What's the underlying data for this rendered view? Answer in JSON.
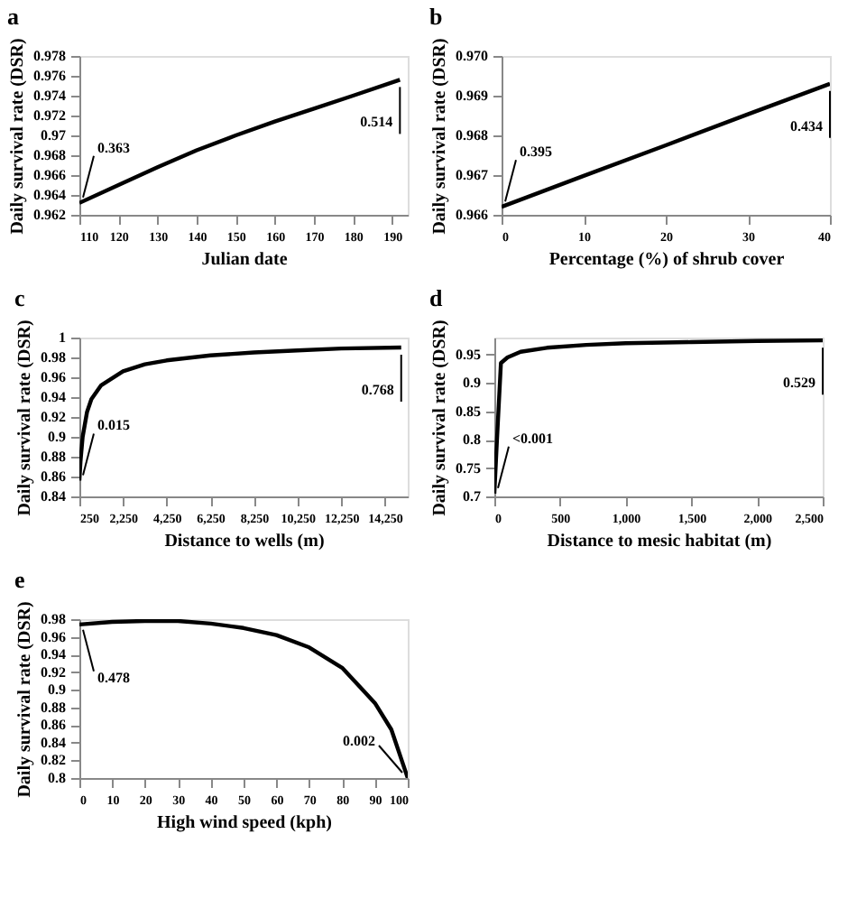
{
  "chart_data": [
    {
      "type": "line",
      "title": "a",
      "xlabel": "Julian date",
      "ylabel": "Daily survival rate (DSR)",
      "x": [
        110,
        120,
        130,
        140,
        150,
        160,
        170,
        180,
        192
      ],
      "series": [
        {
          "color": "#000000",
          "values": [
            0.9632,
            0.965,
            0.9668,
            0.9685,
            0.97,
            0.9714,
            0.9727,
            0.974,
            0.9756
          ]
        }
      ],
      "xlim": [
        110,
        194
      ],
      "xticks": [
        110,
        120,
        130,
        140,
        150,
        160,
        170,
        180,
        190
      ],
      "ylim": [
        0.962,
        0.978
      ],
      "yticks": [
        0.962,
        0.964,
        0.966,
        0.968,
        0.97,
        0.972,
        0.974,
        0.976,
        0.978
      ],
      "annotations": [
        {
          "text": "0.363",
          "x": 110,
          "y": 0.9632
        },
        {
          "text": "0.514",
          "x": 192,
          "y": 0.9756
        }
      ],
      "grid": false
    },
    {
      "type": "line",
      "title": "b",
      "xlabel": "Percentage (%) of shrub cover",
      "ylabel": "Daily survival rate (DSR)",
      "x": [
        0,
        10,
        20,
        30,
        40
      ],
      "series": [
        {
          "color": "#000000",
          "values": [
            0.9662,
            0.96698,
            0.96775,
            0.96853,
            0.9693
          ]
        }
      ],
      "xlim": [
        0,
        40
      ],
      "xticks": [
        0,
        10,
        20,
        30,
        40
      ],
      "ylim": [
        0.966,
        0.97
      ],
      "yticks": [
        0.966,
        0.967,
        0.968,
        0.969,
        {
          "value": 0.97,
          "label": "0.970"
        }
      ],
      "annotations": [
        {
          "text": "0.395",
          "x": 0,
          "y": 0.9662
        },
        {
          "text": "0.434",
          "x": 40,
          "y": 0.9693
        }
      ],
      "grid": false
    },
    {
      "type": "line",
      "title": "c",
      "xlabel": "Distance to wells (m)",
      "ylabel": "Daily survival rate (DSR)",
      "x": [
        250,
        300,
        400,
        600,
        800,
        1250,
        2250,
        3250,
        4250,
        6250,
        8250,
        10250,
        12250,
        15000
      ],
      "series": [
        {
          "color": "#000000",
          "values": [
            0.856,
            0.875,
            0.9,
            0.925,
            0.938,
            0.952,
            0.966,
            0.973,
            0.977,
            0.982,
            0.985,
            0.987,
            0.989,
            0.99
          ]
        }
      ],
      "xlim": [
        250,
        15300
      ],
      "xticks": [
        250,
        {
          "value": 2250,
          "label": "2,250"
        },
        {
          "value": 4250,
          "label": "4,250"
        },
        {
          "value": 6250,
          "label": "6,250"
        },
        {
          "value": 8250,
          "label": "8,250"
        },
        {
          "value": 10250,
          "label": "10,250"
        },
        {
          "value": 12250,
          "label": "12,250"
        },
        {
          "value": 14250,
          "label": "14,250"
        }
      ],
      "ylim": [
        0.84,
        1
      ],
      "yticks": [
        0.84,
        0.86,
        0.88,
        0.9,
        0.92,
        0.94,
        0.96,
        0.98,
        1
      ],
      "annotations": [
        {
          "text": "0.015",
          "x": 250,
          "y": 0.856
        },
        {
          "text": "0.768",
          "x": 15000,
          "y": 0.99
        }
      ],
      "grid": false
    },
    {
      "type": "line",
      "title": "d",
      "xlabel": "Distance to mesic habitat (m)",
      "ylabel": "Daily survival rate (DSR)",
      "x": [
        0,
        20,
        50,
        100,
        200,
        400,
        700,
        1000,
        1500,
        2000,
        2500
      ],
      "series": [
        {
          "color": "#000000",
          "values": [
            0.705,
            0.8,
            0.935,
            0.945,
            0.955,
            0.962,
            0.967,
            0.97,
            0.972,
            0.974,
            0.975
          ]
        }
      ],
      "xlim": [
        0,
        2500
      ],
      "xticks": [
        0,
        500,
        {
          "value": 1000,
          "label": "1,000"
        },
        {
          "value": 1500,
          "label": "1,500"
        },
        {
          "value": 2000,
          "label": "2,000"
        },
        {
          "value": 2500,
          "label": "2,500"
        }
      ],
      "ylim": [
        0.7,
        0.98
      ],
      "yticks": [
        0.7,
        0.75,
        0.8,
        0.85,
        0.9,
        0.95
      ],
      "annotations": [
        {
          "text": "<0.001",
          "x": 0,
          "y": 0.705
        },
        {
          "text": "0.529",
          "x": 2500,
          "y": 0.975
        }
      ],
      "grid": false
    },
    {
      "type": "line",
      "title": "e",
      "xlabel": "High wind speed (kph)",
      "ylabel": "Daily survival rate (DSR)",
      "x": [
        0,
        10,
        20,
        30,
        40,
        50,
        60,
        70,
        80,
        90,
        95,
        100
      ],
      "series": [
        {
          "color": "#000000",
          "values": [
            0.974,
            0.977,
            0.978,
            0.978,
            0.975,
            0.97,
            0.962,
            0.948,
            0.925,
            0.885,
            0.855,
            0.8
          ]
        }
      ],
      "xlim": [
        0,
        100
      ],
      "xticks": [
        0,
        10,
        20,
        30,
        40,
        50,
        60,
        70,
        80,
        90,
        100
      ],
      "ylim": [
        0.8,
        0.98
      ],
      "yticks": [
        0.8,
        0.82,
        0.84,
        0.86,
        0.88,
        0.9,
        0.92,
        0.94,
        0.96,
        0.98
      ],
      "annotations": [
        {
          "text": "0.478",
          "x": 0,
          "y": 0.974
        },
        {
          "text": "0.002",
          "x": 100,
          "y": 0.8
        }
      ],
      "grid": false
    }
  ]
}
